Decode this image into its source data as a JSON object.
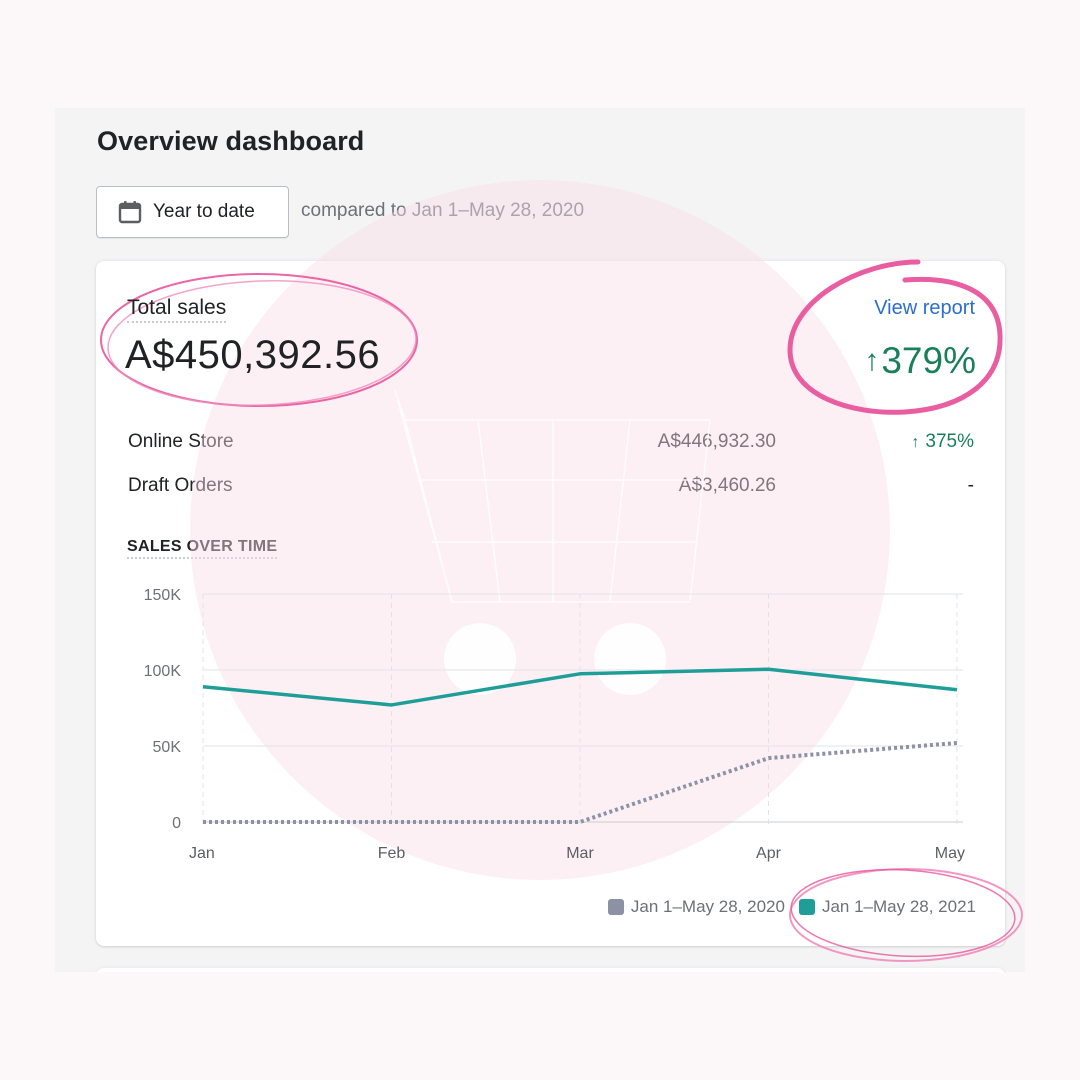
{
  "header": {
    "title": "Overview dashboard",
    "date_button": "Year to date",
    "date_icon": "calendar-icon",
    "comparison": "compared to Jan 1–May 28, 2020"
  },
  "total_sales": {
    "label": "Total sales",
    "value": "A$450,392.56",
    "view_report": "View report",
    "change": "379%",
    "change_direction": "up",
    "change_color": "#1b7f5a"
  },
  "channels": [
    {
      "name": "Online Store",
      "amount": "A$446,932.30",
      "change": "375%",
      "direction": "up"
    },
    {
      "name": "Draft Orders",
      "amount": "A$3,460.26",
      "change": "-",
      "direction": "none"
    }
  ],
  "sales_over_time": {
    "title": "SALES OVER TIME"
  },
  "chart_data": {
    "type": "line",
    "x": [
      "Jan",
      "Feb",
      "Mar",
      "Apr",
      "May"
    ],
    "y_ticks": [
      "150K",
      "100K",
      "50K",
      "0"
    ],
    "ylim": [
      0,
      150000
    ],
    "grid": true,
    "series": [
      {
        "name": "Jan 1–May 28, 2020",
        "values": [
          0,
          0,
          0,
          42000,
          52000
        ],
        "color": "#8c91a6",
        "style": "dotted"
      },
      {
        "name": "Jan 1–May 28, 2021",
        "values": [
          89000,
          77000,
          97500,
          100500,
          87000
        ],
        "color": "#1f9e98",
        "style": "solid"
      }
    ],
    "legend_position": "bottom-right"
  },
  "colors": {
    "accent": "#2c6ecb",
    "highlight_circle": "#e8559b",
    "background_blob": "#f9dde8"
  }
}
